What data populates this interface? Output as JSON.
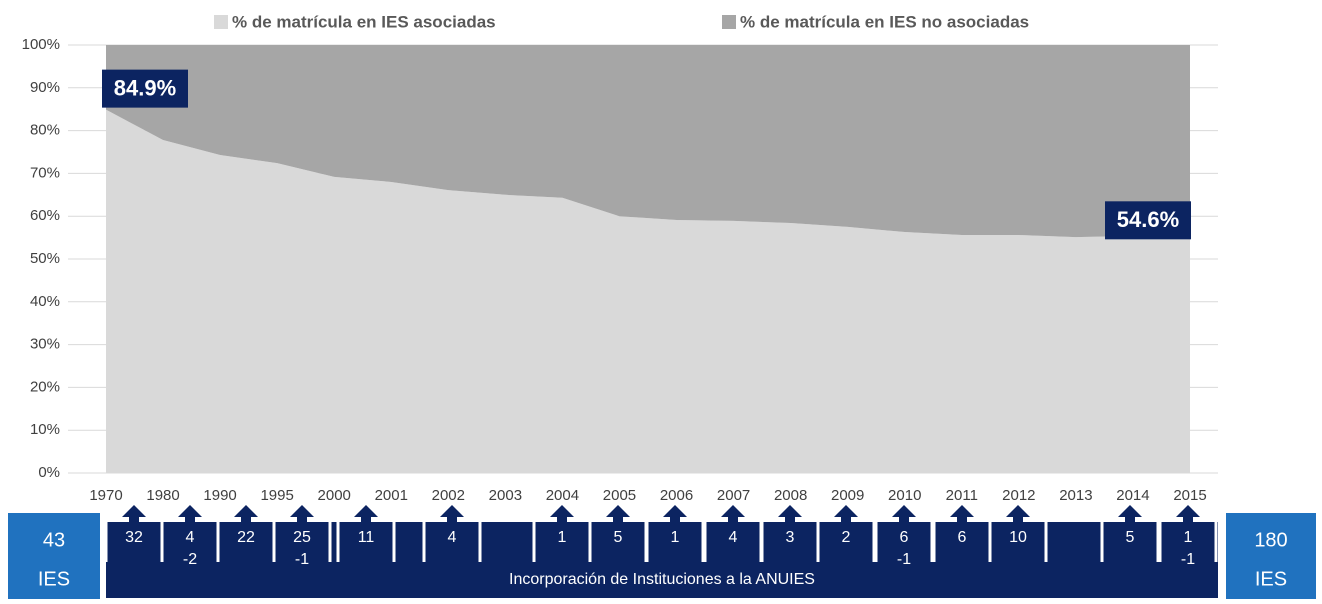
{
  "chart_data": {
    "type": "stacked_area",
    "categories": [
      "1970",
      "1980",
      "1990",
      "1995",
      "2000",
      "2001",
      "2002",
      "2003",
      "2004",
      "2005",
      "2006",
      "2007",
      "2008",
      "2009",
      "2010",
      "2011",
      "2012",
      "2013",
      "2014",
      "2015"
    ],
    "series": [
      {
        "name": "% de matrícula en IES asociadas",
        "color": "#d9d9d9",
        "values": [
          84.9,
          77.8,
          74.3,
          72.4,
          69.2,
          68.0,
          66.1,
          65.0,
          64.3,
          60.0,
          59.1,
          58.9,
          58.4,
          57.5,
          56.3,
          55.6,
          55.6,
          55.1,
          55.4,
          54.6
        ],
        "value_labels": [
          "84.9%",
          null,
          null,
          null,
          null,
          null,
          null,
          null,
          null,
          null,
          null,
          null,
          null,
          null,
          null,
          null,
          null,
          null,
          null,
          "54.6%"
        ]
      },
      {
        "name": "% de matrícula en IES no asociadas",
        "color": "#a6a6a6",
        "values": [
          15.1,
          22.2,
          25.7,
          27.6,
          30.8,
          32.0,
          33.9,
          35.0,
          35.7,
          40.0,
          40.9,
          41.1,
          41.6,
          42.5,
          43.7,
          44.4,
          44.4,
          44.9,
          44.6,
          45.4
        ]
      }
    ],
    "ylim": [
      0,
      100
    ],
    "yticks": [
      {
        "value": 0,
        "label": "0%"
      },
      {
        "value": 10,
        "label": "10%"
      },
      {
        "value": 20,
        "label": "20%"
      },
      {
        "value": 30,
        "label": "30%"
      },
      {
        "value": 40,
        "label": "40%"
      },
      {
        "value": 50,
        "label": "50%"
      },
      {
        "value": 60,
        "label": "60%"
      },
      {
        "value": 70,
        "label": "70%"
      },
      {
        "value": 80,
        "label": "80%"
      },
      {
        "value": 90,
        "label": "90%"
      },
      {
        "value": 100,
        "label": "100%"
      }
    ],
    "grid": true,
    "legend": "top"
  },
  "incorporations": {
    "label": "Incorporación de Instituciones a la ANUIES",
    "start": {
      "number": "43",
      "unit": "IES"
    },
    "end": {
      "number": "180",
      "unit": "IES"
    },
    "items": [
      [
        "32"
      ],
      [
        "4",
        "-2"
      ],
      [
        "22"
      ],
      [
        "25",
        "-1"
      ],
      [
        "11"
      ],
      [
        "4"
      ],
      [
        "1"
      ],
      [
        "5"
      ],
      [
        "1"
      ],
      [
        "4"
      ],
      [
        "3"
      ],
      [
        "2"
      ],
      [
        "6",
        "-1"
      ],
      [
        "6"
      ],
      [
        "10"
      ],
      [
        "5"
      ],
      [
        "1",
        "-1"
      ]
    ]
  }
}
